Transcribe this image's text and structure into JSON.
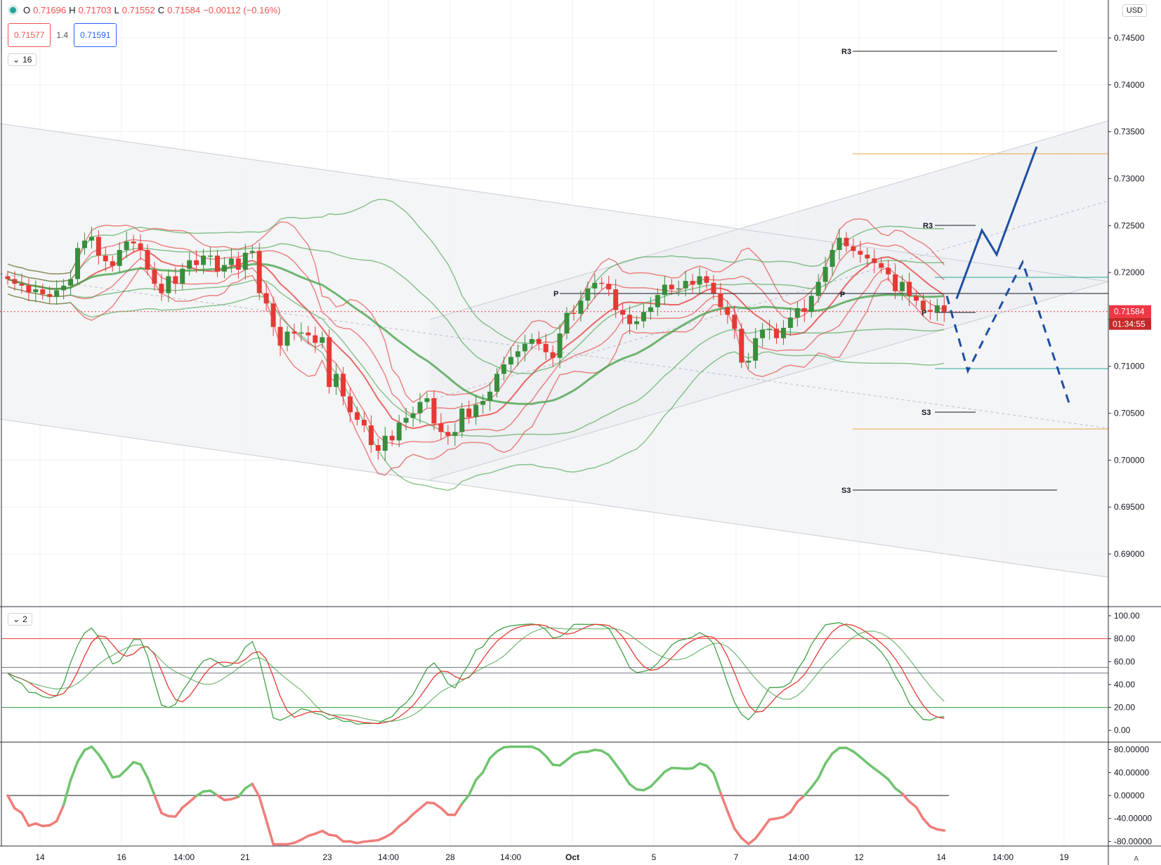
{
  "header": {
    "o_label": "O",
    "o_value": "0.71696",
    "h_label": "H",
    "h_value": "0.71703",
    "l_label": "L",
    "l_value": "0.71552",
    "c_label": "C",
    "c_value": "0.71584",
    "change": "−0.00112 (−0.16%)"
  },
  "quotes": {
    "sell": "0.71577",
    "spread": "1.4",
    "buy": "0.71591"
  },
  "main_pane_toggle": "16",
  "osc_pane_toggle": "2",
  "currency_button": "USD",
  "auto_button": "A",
  "last_price": "0.71584",
  "countdown": "01:34:55",
  "colors": {
    "up": "#388e3c",
    "down": "#e53935",
    "accent": "#1e4fa3",
    "price_line": "#f23645"
  },
  "chart_data": [
    {
      "type": "candlestick",
      "symbol_pane": "main",
      "ylim": [
        0.6895,
        0.7485
      ],
      "y_ticks": [
        "0.74500",
        "0.74000",
        "0.73500",
        "0.73000",
        "0.72500",
        "0.72000",
        "0.71500",
        "0.71000",
        "0.70500",
        "0.70000",
        "0.69500",
        "0.69000"
      ],
      "x_ticks": [
        "14",
        "16",
        "14:00",
        "21",
        "23",
        "14:00",
        "28",
        "14:00",
        "Oct",
        "5",
        "7",
        "14:00",
        "12",
        "14",
        "14:00",
        "19"
      ],
      "pivot_labels": [
        "R3",
        "R3",
        "P",
        "P",
        "P",
        "S3",
        "S3"
      ],
      "candles_close": [
        0.7193,
        0.7188,
        0.7186,
        0.7179,
        0.7182,
        0.7177,
        0.7174,
        0.7181,
        0.7186,
        0.7193,
        0.7226,
        0.7234,
        0.7238,
        0.7218,
        0.7212,
        0.7207,
        0.7224,
        0.7233,
        0.7231,
        0.7224,
        0.7203,
        0.7188,
        0.7178,
        0.7196,
        0.7188,
        0.7204,
        0.7213,
        0.7208,
        0.7218,
        0.7218,
        0.7201,
        0.7208,
        0.7215,
        0.7203,
        0.7221,
        0.7223,
        0.7178,
        0.7167,
        0.7142,
        0.7122,
        0.7137,
        0.7135,
        0.7136,
        0.7133,
        0.7125,
        0.7131,
        0.7078,
        0.7092,
        0.7068,
        0.7051,
        0.7043,
        0.7037,
        0.7016,
        0.701,
        0.7026,
        0.7021,
        0.704,
        0.7045,
        0.705,
        0.7062,
        0.7066,
        0.7039,
        0.703,
        0.7026,
        0.703,
        0.7055,
        0.7046,
        0.7059,
        0.7063,
        0.7073,
        0.7092,
        0.7102,
        0.711,
        0.7116,
        0.7124,
        0.7129,
        0.7124,
        0.7115,
        0.7109,
        0.7135,
        0.7157,
        0.7156,
        0.717,
        0.7183,
        0.7189,
        0.7188,
        0.7182,
        0.716,
        0.7155,
        0.7145,
        0.7148,
        0.7158,
        0.7163,
        0.7176,
        0.7187,
        0.7182,
        0.7183,
        0.7191,
        0.7187,
        0.7196,
        0.7189,
        0.7178,
        0.7163,
        0.7155,
        0.714,
        0.7104,
        0.7106,
        0.713,
        0.7139,
        0.714,
        0.713,
        0.7141,
        0.7152,
        0.7162,
        0.7158,
        0.7175,
        0.719,
        0.7206,
        0.7224,
        0.7237,
        0.7228,
        0.7223,
        0.7219,
        0.7215,
        0.721,
        0.7205,
        0.7198,
        0.718,
        0.719,
        0.7175,
        0.717,
        0.716,
        0.7158,
        0.7165,
        0.7158
      ],
      "projection_solid": [
        0.7172,
        0.7245,
        0.7219,
        0.7334
      ],
      "projection_dashed": [
        0.7175,
        0.7095,
        0.7211,
        0.7061
      ]
    },
    {
      "type": "line",
      "symbol_pane": "stochastic",
      "ylim": [
        -8,
        108
      ],
      "y_ticks": [
        "100.00",
        "80.00",
        "60.00",
        "40.00",
        "20.00",
        "0.00"
      ]
    },
    {
      "type": "line",
      "symbol_pane": "oscillator",
      "ylim": [
        -90,
        90
      ],
      "y_ticks": [
        "80.00000",
        "40.00000",
        "0.00000",
        "-40.00000",
        "-80.00000"
      ]
    }
  ]
}
